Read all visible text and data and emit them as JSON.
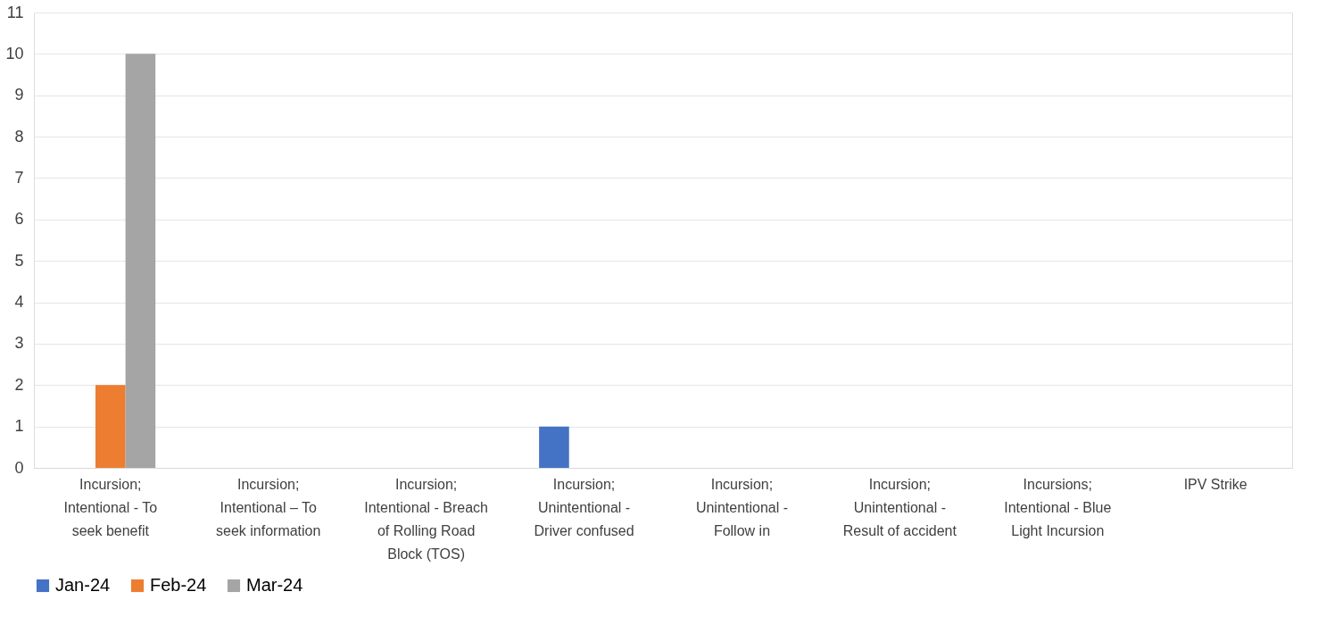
{
  "chart_data": {
    "type": "bar",
    "categories": [
      "Incursion; Intentional - To seek benefit",
      "Incursion; Intentional – To seek information",
      "Incursion; Intentional - Breach of Rolling Road Block (TOS)",
      "Incursion; Unintentional - Driver confused",
      "Incursion; Unintentional - Follow in",
      "Incursion; Unintentional - Result of accident",
      "Incursions; Intentional - Blue Light Incursion",
      "IPV Strike"
    ],
    "series": [
      {
        "name": "Jan-24",
        "color": "#4472c4",
        "values": [
          0,
          0,
          0,
          1,
          0,
          0,
          0,
          0
        ]
      },
      {
        "name": "Feb-24",
        "color": "#ed7d31",
        "values": [
          2,
          0,
          0,
          0,
          0,
          0,
          0,
          0
        ]
      },
      {
        "name": "Mar-24",
        "color": "#a5a5a5",
        "values": [
          10,
          0,
          0,
          0,
          0,
          0,
          0,
          0
        ]
      }
    ],
    "ylim": [
      0,
      11
    ],
    "yticks": [
      0,
      1,
      2,
      3,
      4,
      5,
      6,
      7,
      8,
      9,
      10,
      11
    ],
    "grid": "y",
    "legend": "bottom"
  }
}
